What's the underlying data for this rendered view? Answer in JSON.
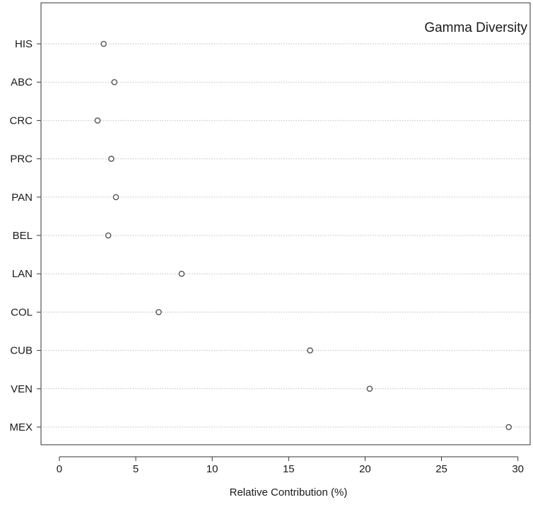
{
  "chart_data": {
    "type": "scatter",
    "title": "Gamma Diversity",
    "xlabel": "Relative Contribution (%)",
    "ylabel": "",
    "xlim": [
      -1.2,
      30.8
    ],
    "xticks": [
      0,
      5,
      10,
      15,
      20,
      25,
      30
    ],
    "grid": "horizontal-dotted",
    "categories": [
      "HIS",
      "ABC",
      "CRC",
      "PRC",
      "PAN",
      "BEL",
      "LAN",
      "COL",
      "CUB",
      "VEN",
      "MEX"
    ],
    "values": [
      2.9,
      3.6,
      2.5,
      3.4,
      3.7,
      3.2,
      8.0,
      6.5,
      16.4,
      20.3,
      29.4
    ],
    "colors": {
      "point": "#555555",
      "grid": "#bdbdbd",
      "axis": "#333333"
    }
  }
}
